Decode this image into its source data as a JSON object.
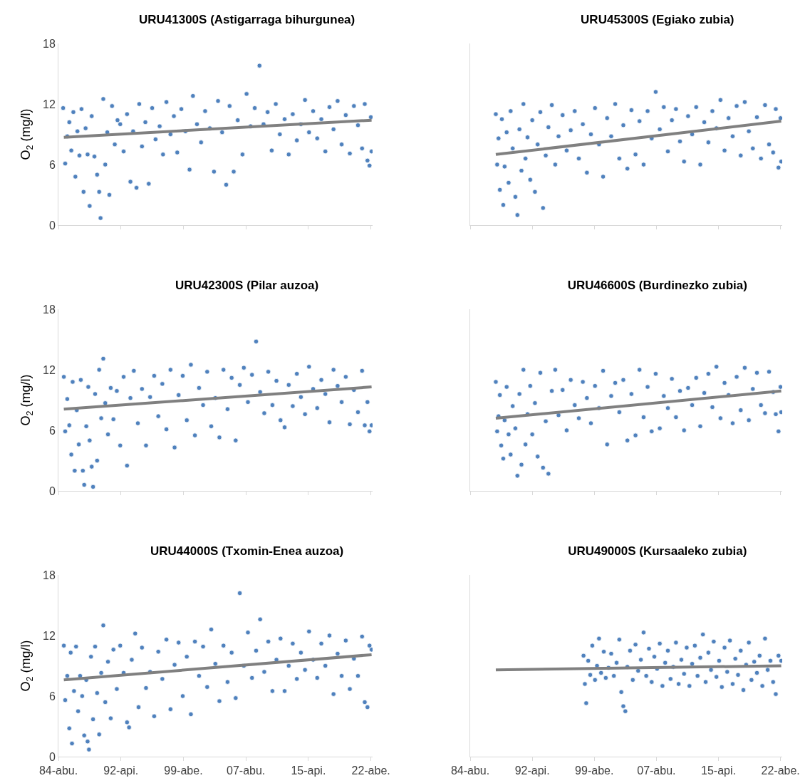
{
  "chart_data": [
    {
      "type": "scatter",
      "title": "URU41300S (Astigarraga bihurgunea)",
      "ylabel": "O$_{2}$ (mg/l)",
      "xlim": [
        "1984-08-01",
        "2023-02-15"
      ],
      "xticks": [
        {
          "value": "1984-08-01",
          "label": null
        },
        {
          "value": "1992-04-01",
          "label": null
        },
        {
          "value": "1999-12-01",
          "label": null
        },
        {
          "value": "2007-08-01",
          "label": null
        },
        {
          "value": "2015-04-01",
          "label": null
        },
        {
          "value": "2022-12-01",
          "label": null
        }
      ],
      "ylim": [
        0,
        18
      ],
      "yticks": [
        0,
        6,
        12,
        18
      ],
      "tick_labels": "y",
      "marker": "circle",
      "series": [
        {
          "color": "#4f81bd",
          "x": [
            "1985-03",
            "1985-06",
            "1985-09",
            "1985-12",
            "1986-03",
            "1986-06",
            "1986-09",
            "1986-12",
            "1987-03",
            "1987-06",
            "1987-09",
            "1987-12",
            "1988-03",
            "1988-06",
            "1988-09",
            "1989-01",
            "1989-05",
            "1989-08",
            "1989-10",
            "1990-02",
            "1990-05",
            "1990-08",
            "1990-11",
            "1991-03",
            "1991-07",
            "1991-11",
            "1992-03",
            "1992-08",
            "1993-01",
            "1993-06",
            "1993-10",
            "1994-03",
            "1994-07",
            "1994-11",
            "1995-04",
            "1995-09",
            "1996-02",
            "1996-07",
            "1997-01",
            "1997-06",
            "1997-11",
            "1998-05",
            "1998-10",
            "1999-03",
            "1999-09",
            "2000-03",
            "2000-09",
            "2001-02",
            "2001-08",
            "2002-02",
            "2002-08",
            "2003-03",
            "2003-09",
            "2004-03",
            "2004-09",
            "2005-03",
            "2005-08",
            "2006-02",
            "2006-08",
            "2007-03",
            "2007-09",
            "2008-03",
            "2008-09",
            "2009-04",
            "2009-10",
            "2010-04",
            "2010-10",
            "2011-04",
            "2011-10",
            "2012-05",
            "2012-11",
            "2013-05",
            "2013-11",
            "2014-05",
            "2014-11",
            "2015-05",
            "2015-11",
            "2016-05",
            "2016-11",
            "2017-05",
            "2017-11",
            "2018-05",
            "2018-11",
            "2019-05",
            "2019-11",
            "2020-05",
            "2020-11",
            "2021-05",
            "2021-11",
            "2022-03",
            "2022-07",
            "2022-10",
            "2022-12",
            "2023-01"
          ],
          "values": [
            11.6,
            6.1,
            8.8,
            10.2,
            7.4,
            11.2,
            4.8,
            9.3,
            6.9,
            11.5,
            3.3,
            9.6,
            7.0,
            1.9,
            10.8,
            6.8,
            5.0,
            3.3,
            0.7,
            12.5,
            6.0,
            9.2,
            3.0,
            11.8,
            8.0,
            10.4,
            10.0,
            7.3,
            11.0,
            4.3,
            9.3,
            3.7,
            12.0,
            7.8,
            10.2,
            4.1,
            11.6,
            8.5,
            9.8,
            7.0,
            12.2,
            9.0,
            10.8,
            7.2,
            11.5,
            9.3,
            5.5,
            12.8,
            10.0,
            8.2,
            11.3,
            9.6,
            5.3,
            12.3,
            9.2,
            4.0,
            11.8,
            5.3,
            10.4,
            7.0,
            13.0,
            9.8,
            11.6,
            15.8,
            10.0,
            11.2,
            7.4,
            12.0,
            9.0,
            10.5,
            7.0,
            11.0,
            8.4,
            10.0,
            12.4,
            9.2,
            11.3,
            8.6,
            10.5,
            7.3,
            11.7,
            9.5,
            12.3,
            8.0,
            10.9,
            7.1,
            11.8,
            9.9,
            7.6,
            12.0,
            6.4,
            5.9,
            10.7,
            7.3
          ]
        },
        {
          "type": "line",
          "color": "#808080",
          "x": [
            "1985-04",
            "2023-01"
          ],
          "values": [
            8.7,
            10.4
          ],
          "marker": "none"
        }
      ]
    },
    {
      "type": "scatter",
      "title": "URU45300S (Egiako zubia)",
      "xlim": [
        "1984-08-01",
        "2023-02-15"
      ],
      "xticks": [
        {
          "value": "1984-08-01",
          "label": null
        },
        {
          "value": "1992-04-01",
          "label": null
        },
        {
          "value": "1999-12-01",
          "label": null
        },
        {
          "value": "2007-08-01",
          "label": null
        },
        {
          "value": "2015-04-01",
          "label": null
        },
        {
          "value": "2022-12-01",
          "label": null
        }
      ],
      "ylim": [
        0,
        18
      ],
      "yticks": [
        0,
        6,
        12,
        18
      ],
      "tick_labels": false,
      "marker": "circle",
      "series": [
        {
          "color": "#4f81bd",
          "x": [
            "1987-10",
            "1987-12",
            "1988-02",
            "1988-04",
            "1988-07",
            "1988-09",
            "1988-11",
            "1989-02",
            "1989-05",
            "1989-08",
            "1989-11",
            "1990-03",
            "1990-06",
            "1990-09",
            "1990-12",
            "1991-03",
            "1991-06",
            "1991-09",
            "1992-01",
            "1992-04",
            "1992-08",
            "1992-12",
            "1993-04",
            "1993-08",
            "1993-12",
            "1994-04",
            "1994-09",
            "1995-02",
            "1995-07",
            "1996-01",
            "1996-07",
            "1997-01",
            "1997-07",
            "1998-01",
            "1998-07",
            "1999-01",
            "1999-07",
            "2000-01",
            "2000-07",
            "2001-01",
            "2001-07",
            "2002-01",
            "2002-07",
            "2003-01",
            "2003-07",
            "2004-01",
            "2004-07",
            "2005-01",
            "2005-07",
            "2006-01",
            "2006-07",
            "2007-01",
            "2007-07",
            "2008-01",
            "2008-07",
            "2009-01",
            "2009-07",
            "2010-01",
            "2010-07",
            "2011-01",
            "2011-07",
            "2012-01",
            "2012-07",
            "2013-01",
            "2013-07",
            "2014-01",
            "2014-07",
            "2015-01",
            "2015-07",
            "2016-01",
            "2016-07",
            "2017-01",
            "2017-07",
            "2018-01",
            "2018-07",
            "2019-01",
            "2019-07",
            "2020-01",
            "2020-07",
            "2021-01",
            "2021-07",
            "2022-01",
            "2022-05",
            "2022-09",
            "2022-12",
            "2023-01"
          ],
          "values": [
            11.0,
            6.0,
            8.6,
            3.5,
            10.5,
            2.0,
            5.8,
            9.2,
            4.2,
            11.3,
            7.6,
            2.8,
            1.0,
            9.5,
            5.4,
            12.0,
            6.6,
            8.7,
            4.5,
            10.4,
            3.3,
            8.0,
            11.2,
            1.7,
            6.9,
            9.7,
            11.9,
            6.0,
            8.8,
            10.9,
            7.4,
            9.4,
            11.3,
            6.6,
            10.0,
            5.2,
            9.0,
            11.6,
            8.0,
            4.8,
            10.6,
            8.8,
            12.0,
            6.6,
            9.9,
            5.6,
            11.4,
            7.0,
            10.3,
            6.0,
            11.3,
            8.6,
            13.2,
            9.5,
            11.7,
            7.3,
            10.4,
            11.5,
            8.3,
            6.3,
            10.8,
            9.0,
            11.7,
            6.0,
            10.2,
            8.2,
            11.3,
            9.6,
            12.4,
            7.4,
            10.6,
            8.8,
            11.8,
            6.9,
            12.2,
            9.3,
            7.6,
            10.7,
            6.6,
            11.9,
            8.0,
            7.2,
            11.5,
            5.7,
            10.6,
            6.3
          ]
        },
        {
          "type": "line",
          "color": "#808080",
          "x": [
            "1987-10",
            "2023-01"
          ],
          "values": [
            7.0,
            10.3
          ],
          "marker": "none"
        }
      ]
    },
    {
      "type": "scatter",
      "title": "URU42300S (Pilar auzoa)",
      "ylabel": "O$_{2}$ (mg/l)",
      "xlim": [
        "1984-08-01",
        "2023-02-15"
      ],
      "xticks": [
        {
          "value": "1984-08-01",
          "label": null
        },
        {
          "value": "1992-04-01",
          "label": null
        },
        {
          "value": "1999-12-01",
          "label": null
        },
        {
          "value": "2007-08-01",
          "label": null
        },
        {
          "value": "2015-04-01",
          "label": null
        },
        {
          "value": "2022-12-01",
          "label": null
        }
      ],
      "ylim": [
        0,
        18
      ],
      "yticks": [
        0,
        6,
        12,
        18
      ],
      "tick_labels": "y",
      "marker": "circle",
      "series": [
        {
          "color": "#4f81bd",
          "x": [
            "1985-04",
            "1985-06",
            "1985-09",
            "1985-12",
            "1986-03",
            "1986-05",
            "1986-08",
            "1986-11",
            "1987-02",
            "1987-05",
            "1987-08",
            "1987-10",
            "1988-01",
            "1988-04",
            "1988-06",
            "1988-09",
            "1988-11",
            "1989-02",
            "1989-05",
            "1989-08",
            "1989-11",
            "1990-02",
            "1990-05",
            "1990-09",
            "1991-01",
            "1991-05",
            "1991-10",
            "1992-03",
            "1992-08",
            "1993-01",
            "1993-06",
            "1993-11",
            "1994-05",
            "1994-11",
            "1995-05",
            "1995-11",
            "1996-05",
            "1996-11",
            "1997-05",
            "1997-11",
            "1998-05",
            "1998-11",
            "1999-05",
            "1999-11",
            "2000-05",
            "2000-11",
            "2001-05",
            "2001-11",
            "2002-05",
            "2002-11",
            "2003-05",
            "2003-11",
            "2004-05",
            "2004-11",
            "2005-05",
            "2005-11",
            "2006-05",
            "2006-11",
            "2007-05",
            "2007-11",
            "2008-05",
            "2008-11",
            "2009-05",
            "2009-11",
            "2010-05",
            "2010-11",
            "2011-05",
            "2011-11",
            "2012-05",
            "2012-11",
            "2013-05",
            "2013-11",
            "2014-05",
            "2014-11",
            "2015-05",
            "2015-11",
            "2016-05",
            "2016-11",
            "2017-05",
            "2017-11",
            "2018-05",
            "2018-11",
            "2019-05",
            "2019-11",
            "2020-05",
            "2020-11",
            "2021-05",
            "2021-11",
            "2022-03",
            "2022-07",
            "2022-10",
            "2023-01"
          ],
          "values": [
            11.3,
            5.9,
            9.1,
            6.5,
            3.6,
            10.8,
            2.0,
            8.0,
            4.6,
            11.0,
            2.0,
            0.6,
            6.4,
            10.3,
            5.0,
            2.4,
            0.4,
            9.6,
            3.0,
            12.0,
            7.2,
            13.1,
            8.7,
            5.6,
            10.2,
            7.1,
            9.9,
            4.5,
            11.3,
            2.5,
            9.2,
            11.9,
            6.7,
            10.1,
            4.5,
            9.3,
            11.4,
            7.4,
            10.6,
            6.1,
            12.0,
            4.3,
            9.5,
            11.4,
            7.0,
            12.5,
            5.5,
            10.2,
            8.5,
            11.8,
            6.4,
            9.2,
            5.3,
            12.0,
            8.1,
            11.2,
            5.0,
            10.5,
            12.2,
            8.8,
            11.5,
            14.8,
            9.8,
            7.7,
            11.8,
            8.5,
            10.9,
            7.0,
            6.3,
            10.5,
            8.4,
            11.6,
            9.3,
            7.6,
            12.3,
            10.1,
            8.2,
            11.0,
            9.6,
            6.8,
            12.0,
            10.4,
            8.8,
            11.3,
            6.6,
            10.0,
            7.8,
            11.9,
            6.5,
            8.8,
            5.9,
            6.5
          ]
        },
        {
          "type": "line",
          "color": "#808080",
          "x": [
            "1985-04",
            "2023-01"
          ],
          "values": [
            8.1,
            10.3
          ],
          "marker": "none"
        }
      ]
    },
    {
      "type": "scatter",
      "title": "URU46600S (Burdinezko zubia)",
      "xlim": [
        "1984-08-01",
        "2023-02-15"
      ],
      "xticks": [
        {
          "value": "1984-08-01",
          "label": null
        },
        {
          "value": "1992-04-01",
          "label": null
        },
        {
          "value": "1999-12-01",
          "label": null
        },
        {
          "value": "2007-08-01",
          "label": null
        },
        {
          "value": "2015-04-01",
          "label": null
        },
        {
          "value": "2022-12-01",
          "label": null
        }
      ],
      "ylim": [
        0,
        18
      ],
      "yticks": [
        0,
        6,
        12,
        18
      ],
      "tick_labels": false,
      "marker": "circle",
      "series": [
        {
          "color": "#4f81bd",
          "x": [
            "1987-10",
            "1987-12",
            "1988-02",
            "1988-04",
            "1988-06",
            "1988-09",
            "1988-11",
            "1989-02",
            "1989-05",
            "1989-08",
            "1989-11",
            "1990-03",
            "1990-06",
            "1990-09",
            "1990-12",
            "1991-03",
            "1991-06",
            "1991-09",
            "1992-01",
            "1992-04",
            "1992-08",
            "1992-12",
            "1993-04",
            "1993-08",
            "1993-12",
            "1994-04",
            "1994-09",
            "1995-02",
            "1995-07",
            "1996-01",
            "1996-07",
            "1997-01",
            "1997-07",
            "1998-01",
            "1998-07",
            "1999-01",
            "1999-07",
            "2000-01",
            "2000-07",
            "2001-01",
            "2001-07",
            "2002-01",
            "2002-07",
            "2003-01",
            "2003-07",
            "2004-01",
            "2004-07",
            "2005-01",
            "2005-07",
            "2006-01",
            "2006-07",
            "2007-01",
            "2007-07",
            "2008-01",
            "2008-07",
            "2009-01",
            "2009-07",
            "2010-01",
            "2010-07",
            "2011-01",
            "2011-07",
            "2012-01",
            "2012-07",
            "2013-01",
            "2013-07",
            "2014-01",
            "2014-07",
            "2015-01",
            "2015-07",
            "2016-01",
            "2016-07",
            "2017-01",
            "2017-07",
            "2018-01",
            "2018-07",
            "2019-01",
            "2019-07",
            "2020-01",
            "2020-07",
            "2021-01",
            "2021-07",
            "2022-01",
            "2022-05",
            "2022-09",
            "2022-12",
            "2023-01"
          ],
          "values": [
            10.8,
            5.9,
            7.4,
            9.5,
            4.5,
            3.2,
            7.0,
            10.3,
            5.6,
            3.6,
            8.4,
            6.2,
            1.5,
            9.6,
            2.6,
            12.0,
            4.6,
            7.6,
            10.4,
            5.6,
            8.7,
            3.4,
            11.7,
            2.3,
            6.9,
            1.7,
            9.9,
            12.0,
            7.5,
            10.0,
            6.0,
            11.0,
            8.5,
            7.2,
            10.8,
            9.2,
            6.7,
            10.4,
            8.2,
            11.9,
            4.6,
            9.4,
            10.7,
            7.8,
            11.0,
            5.0,
            9.6,
            5.5,
            12.0,
            7.3,
            10.3,
            5.9,
            11.6,
            6.2,
            9.4,
            8.2,
            11.1,
            7.3,
            9.9,
            6.0,
            10.2,
            8.5,
            11.2,
            6.4,
            9.7,
            11.6,
            8.3,
            12.3,
            7.2,
            10.7,
            9.5,
            6.7,
            11.3,
            8.0,
            12.2,
            7.0,
            10.1,
            11.7,
            8.5,
            7.7,
            11.8,
            9.8,
            7.6,
            5.9,
            10.3,
            7.8
          ]
        },
        {
          "type": "line",
          "color": "#808080",
          "x": [
            "1987-10",
            "2023-01"
          ],
          "values": [
            7.2,
            9.9
          ],
          "marker": "none"
        }
      ]
    },
    {
      "type": "scatter",
      "title": "URU44000S (Txomin-Enea auzoa)",
      "ylabel": "O$_{2}$ (mg/l)",
      "xlim": [
        "1984-08-01",
        "2023-02-15"
      ],
      "xticks": [
        {
          "value": "1984-08-01",
          "label": "84-abu."
        },
        {
          "value": "1992-04-01",
          "label": "92-api."
        },
        {
          "value": "1999-12-01",
          "label": "99-abe."
        },
        {
          "value": "2007-08-01",
          "label": "07-abu."
        },
        {
          "value": "2015-04-01",
          "label": "15-api."
        },
        {
          "value": "2022-12-01",
          "label": "22-abe."
        }
      ],
      "ylim": [
        0,
        18
      ],
      "yticks": [
        0,
        6,
        12,
        18
      ],
      "marker": "circle",
      "series": [
        {
          "color": "#4f81bd",
          "x": [
            "1985-04",
            "1985-06",
            "1985-09",
            "1985-12",
            "1986-02",
            "1986-04",
            "1986-07",
            "1986-10",
            "1987-01",
            "1987-04",
            "1987-07",
            "1987-10",
            "1988-01",
            "1988-03",
            "1988-05",
            "1988-08",
            "1988-11",
            "1989-02",
            "1989-05",
            "1989-08",
            "1989-11",
            "1990-02",
            "1990-05",
            "1990-09",
            "1991-01",
            "1991-05",
            "1991-10",
            "1992-03",
            "1992-08",
            "1993-01",
            "1993-04",
            "1993-08",
            "1994-01",
            "1994-06",
            "1994-11",
            "1995-05",
            "1995-11",
            "1996-05",
            "1996-11",
            "1997-05",
            "1997-11",
            "1998-05",
            "1998-11",
            "1999-05",
            "1999-11",
            "2000-05",
            "2000-11",
            "2001-05",
            "2001-11",
            "2002-05",
            "2002-11",
            "2003-05",
            "2003-11",
            "2004-05",
            "2004-11",
            "2005-05",
            "2005-11",
            "2006-05",
            "2006-11",
            "2007-05",
            "2007-11",
            "2008-05",
            "2008-11",
            "2009-05",
            "2009-11",
            "2010-05",
            "2010-11",
            "2011-05",
            "2011-11",
            "2012-05",
            "2012-11",
            "2013-05",
            "2013-11",
            "2014-05",
            "2014-11",
            "2015-05",
            "2015-11",
            "2016-05",
            "2016-11",
            "2017-05",
            "2017-11",
            "2018-05",
            "2018-11",
            "2019-05",
            "2019-11",
            "2020-05",
            "2020-11",
            "2021-05",
            "2021-11",
            "2022-03",
            "2022-07",
            "2022-10",
            "2023-01"
          ],
          "values": [
            11.0,
            5.6,
            8.0,
            2.8,
            10.3,
            1.3,
            6.5,
            10.9,
            4.5,
            8.0,
            6.0,
            2.1,
            7.6,
            1.5,
            0.7,
            9.9,
            3.7,
            10.9,
            6.3,
            2.2,
            8.3,
            13.0,
            5.4,
            9.4,
            3.8,
            10.6,
            6.7,
            11.0,
            8.3,
            3.4,
            2.9,
            9.6,
            12.2,
            4.9,
            10.8,
            6.8,
            8.4,
            4.0,
            10.4,
            7.7,
            11.6,
            4.7,
            9.1,
            11.3,
            6.0,
            9.9,
            4.2,
            11.4,
            8.0,
            10.9,
            6.9,
            12.6,
            9.2,
            5.5,
            11.0,
            7.4,
            10.3,
            5.8,
            16.2,
            9.0,
            12.3,
            7.8,
            10.5,
            13.6,
            8.4,
            11.4,
            6.5,
            9.6,
            11.7,
            6.5,
            9.0,
            11.2,
            7.7,
            10.3,
            8.6,
            12.4,
            9.6,
            7.8,
            11.2,
            9.0,
            12.0,
            6.2,
            10.2,
            8.0,
            11.5,
            6.7,
            9.7,
            8.0,
            11.9,
            5.4,
            4.9,
            11.0,
            10.6
          ]
        },
        {
          "type": "line",
          "color": "#808080",
          "x": [
            "1985-04",
            "2023-01"
          ],
          "values": [
            7.6,
            10.1
          ],
          "marker": "none"
        }
      ]
    },
    {
      "type": "scatter",
      "title": "URU49000S (Kursaaleko zubia)",
      "xlim": [
        "1984-08-01",
        "2023-02-15"
      ],
      "xticks": [
        {
          "value": "1984-08-01",
          "label": "84-abu."
        },
        {
          "value": "1992-04-01",
          "label": "92-api."
        },
        {
          "value": "1999-12-01",
          "label": "99-abe."
        },
        {
          "value": "2007-08-01",
          "label": "07-abu."
        },
        {
          "value": "2015-04-01",
          "label": "15-api."
        },
        {
          "value": "2022-12-01",
          "label": "22-abe."
        }
      ],
      "ylim": [
        0,
        18
      ],
      "yticks": [
        0,
        6,
        12,
        18
      ],
      "tick_labels": "x",
      "marker": "circle",
      "series": [
        {
          "color": "#4f81bd",
          "x": [
            "1998-08",
            "1998-10",
            "1998-12",
            "1999-03",
            "1999-06",
            "1999-09",
            "2000-01",
            "2000-04",
            "2000-07",
            "2000-10",
            "2001-02",
            "2001-05",
            "2001-09",
            "2002-01",
            "2002-05",
            "2002-09",
            "2003-01",
            "2003-04",
            "2003-07",
            "2003-10",
            "2004-01",
            "2004-05",
            "2004-09",
            "2005-01",
            "2005-05",
            "2005-09",
            "2006-01",
            "2006-05",
            "2006-09",
            "2007-01",
            "2007-05",
            "2007-09",
            "2008-01",
            "2008-05",
            "2008-09",
            "2009-01",
            "2009-05",
            "2009-09",
            "2010-01",
            "2010-05",
            "2010-09",
            "2011-01",
            "2011-05",
            "2011-09",
            "2012-01",
            "2012-05",
            "2012-09",
            "2013-01",
            "2013-05",
            "2013-09",
            "2014-01",
            "2014-05",
            "2014-09",
            "2015-01",
            "2015-05",
            "2015-09",
            "2016-01",
            "2016-05",
            "2016-09",
            "2017-01",
            "2017-05",
            "2017-09",
            "2018-01",
            "2018-05",
            "2018-09",
            "2019-01",
            "2019-05",
            "2019-09",
            "2020-01",
            "2020-05",
            "2020-09",
            "2021-01",
            "2021-05",
            "2021-09",
            "2022-01",
            "2022-05",
            "2022-09",
            "2023-01"
          ],
          "values": [
            10.0,
            7.2,
            5.3,
            9.5,
            8.1,
            11.0,
            7.6,
            9.0,
            11.7,
            8.3,
            10.4,
            7.8,
            8.8,
            10.2,
            8.0,
            9.3,
            11.6,
            6.4,
            5.0,
            4.5,
            8.9,
            10.5,
            7.6,
            11.1,
            8.5,
            9.6,
            12.3,
            8.0,
            10.7,
            7.4,
            9.9,
            8.7,
            11.2,
            7.0,
            9.3,
            10.5,
            7.7,
            8.9,
            11.3,
            7.2,
            9.6,
            8.2,
            10.8,
            7.0,
            9.2,
            11.0,
            8.0,
            9.8,
            12.1,
            7.4,
            10.3,
            8.6,
            11.4,
            7.9,
            9.5,
            6.9,
            10.8,
            8.4,
            11.5,
            7.2,
            9.7,
            8.1,
            10.5,
            6.6,
            9.1,
            11.3,
            7.6,
            9.4,
            8.3,
            10.0,
            7.0,
            11.7,
            8.6,
            9.5,
            7.4,
            6.2,
            10.0,
            9.5
          ]
        },
        {
          "type": "line",
          "color": "#808080",
          "x": [
            "1987-10",
            "2023-01"
          ],
          "values": [
            8.6,
            9.0
          ],
          "marker": "none"
        }
      ]
    }
  ]
}
